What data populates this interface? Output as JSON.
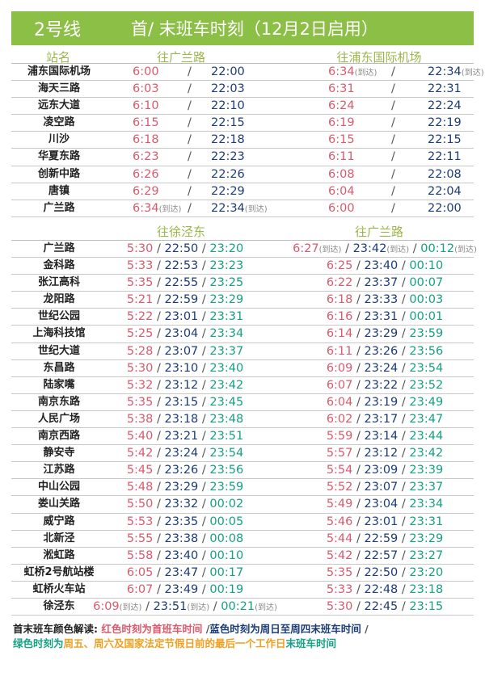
{
  "header": {
    "line": "2号线",
    "title": "首/ 末班车时刻（12月2日启用）"
  },
  "colors": {
    "header_bg": "#8cbf45",
    "first": "#d95a6e",
    "last_weekday": "#1c3c78",
    "last_weekend": "#16a085",
    "highlight": "#f0a020"
  },
  "upper": {
    "col_station": "站名",
    "col_left": "往广兰路",
    "col_right": "往浦东国际机场",
    "rows": [
      {
        "station": "浦东国际机场",
        "l": [
          [
            "6:00",
            ""
          ],
          [
            "22:00",
            ""
          ]
        ],
        "r": [
          [
            "6:34",
            "(到达)"
          ],
          [
            "22:34",
            "(到达)"
          ]
        ]
      },
      {
        "station": "海天三路",
        "l": [
          [
            "6:03",
            ""
          ],
          [
            "22:03",
            ""
          ]
        ],
        "r": [
          [
            "6:31",
            ""
          ],
          [
            "22:31",
            ""
          ]
        ]
      },
      {
        "station": "远东大道",
        "l": [
          [
            "6:10",
            ""
          ],
          [
            "22:10",
            ""
          ]
        ],
        "r": [
          [
            "6:24",
            ""
          ],
          [
            "22:24",
            ""
          ]
        ]
      },
      {
        "station": "凌空路",
        "l": [
          [
            "6:15",
            ""
          ],
          [
            "22:15",
            ""
          ]
        ],
        "r": [
          [
            "6:19",
            ""
          ],
          [
            "22:19",
            ""
          ]
        ]
      },
      {
        "station": "川沙",
        "l": [
          [
            "6:18",
            ""
          ],
          [
            "22:18",
            ""
          ]
        ],
        "r": [
          [
            "6:15",
            ""
          ],
          [
            "22:15",
            ""
          ]
        ]
      },
      {
        "station": "华夏东路",
        "l": [
          [
            "6:23",
            ""
          ],
          [
            "22:23",
            ""
          ]
        ],
        "r": [
          [
            "6:11",
            ""
          ],
          [
            "22:11",
            ""
          ]
        ]
      },
      {
        "station": "创新中路",
        "l": [
          [
            "6:26",
            ""
          ],
          [
            "22:26",
            ""
          ]
        ],
        "r": [
          [
            "6:08",
            ""
          ],
          [
            "22:08",
            ""
          ]
        ]
      },
      {
        "station": "唐镇",
        "l": [
          [
            "6:29",
            ""
          ],
          [
            "22:29",
            ""
          ]
        ],
        "r": [
          [
            "6:04",
            ""
          ],
          [
            "22:04",
            ""
          ]
        ]
      },
      {
        "station": "广兰路",
        "l": [
          [
            "6:34",
            "(到达)"
          ],
          [
            "22:34",
            "(到达)"
          ]
        ],
        "r": [
          [
            "6:00",
            ""
          ],
          [
            "22:00",
            ""
          ]
        ]
      }
    ]
  },
  "lower": {
    "col_left": "往徐泾东",
    "col_right": "往广兰路",
    "rows": [
      {
        "station": "广兰路",
        "l": [
          [
            "5:30",
            ""
          ],
          [
            "22:50",
            ""
          ],
          [
            "23:20",
            ""
          ]
        ],
        "r": [
          [
            "6:27",
            "(到达)"
          ],
          [
            "23:42",
            "(到达)"
          ],
          [
            "00:12",
            "(到达)"
          ]
        ]
      },
      {
        "station": "金科路",
        "l": [
          [
            "5:33",
            ""
          ],
          [
            "22:53",
            ""
          ],
          [
            "23:23",
            ""
          ]
        ],
        "r": [
          [
            "6:25",
            ""
          ],
          [
            "23:40",
            ""
          ],
          [
            "00:10",
            ""
          ]
        ]
      },
      {
        "station": "张江高科",
        "l": [
          [
            "5:35",
            ""
          ],
          [
            "22:55",
            ""
          ],
          [
            "23:25",
            ""
          ]
        ],
        "r": [
          [
            "6:22",
            ""
          ],
          [
            "23:37",
            ""
          ],
          [
            "00:07",
            ""
          ]
        ]
      },
      {
        "station": "龙阳路",
        "l": [
          [
            "5:21",
            ""
          ],
          [
            "22:59",
            ""
          ],
          [
            "23:29",
            ""
          ]
        ],
        "r": [
          [
            "6:18",
            ""
          ],
          [
            "23:33",
            ""
          ],
          [
            "00:03",
            ""
          ]
        ]
      },
      {
        "station": "世纪公园",
        "l": [
          [
            "5:22",
            ""
          ],
          [
            "23:01",
            ""
          ],
          [
            "23:31",
            ""
          ]
        ],
        "r": [
          [
            "6:16",
            ""
          ],
          [
            "23:31",
            ""
          ],
          [
            "00:01",
            ""
          ]
        ]
      },
      {
        "station": "上海科技馆",
        "l": [
          [
            "5:25",
            ""
          ],
          [
            "23:04",
            ""
          ],
          [
            "23:34",
            ""
          ]
        ],
        "r": [
          [
            "6:14",
            ""
          ],
          [
            "23:29",
            ""
          ],
          [
            "23:59",
            ""
          ]
        ]
      },
      {
        "station": "世纪大道",
        "l": [
          [
            "5:28",
            ""
          ],
          [
            "23:07",
            ""
          ],
          [
            "23:37",
            ""
          ]
        ],
        "r": [
          [
            "6:11",
            ""
          ],
          [
            "23:26",
            ""
          ],
          [
            "23:56",
            ""
          ]
        ]
      },
      {
        "station": "东昌路",
        "l": [
          [
            "5:30",
            ""
          ],
          [
            "23:10",
            ""
          ],
          [
            "23:40",
            ""
          ]
        ],
        "r": [
          [
            "6:09",
            ""
          ],
          [
            "23:24",
            ""
          ],
          [
            "23:54",
            ""
          ]
        ]
      },
      {
        "station": "陆家嘴",
        "l": [
          [
            "5:32",
            ""
          ],
          [
            "23:12",
            ""
          ],
          [
            "23:42",
            ""
          ]
        ],
        "r": [
          [
            "6:07",
            ""
          ],
          [
            "23:22",
            ""
          ],
          [
            "23:52",
            ""
          ]
        ]
      },
      {
        "station": "南京东路",
        "l": [
          [
            "5:35",
            ""
          ],
          [
            "23:15",
            ""
          ],
          [
            "23:45",
            ""
          ]
        ],
        "r": [
          [
            "6:04",
            ""
          ],
          [
            "23:19",
            ""
          ],
          [
            "23:49",
            ""
          ]
        ]
      },
      {
        "station": "人民广场",
        "l": [
          [
            "5:38",
            ""
          ],
          [
            "23:18",
            ""
          ],
          [
            "23:48",
            ""
          ]
        ],
        "r": [
          [
            "6:02",
            ""
          ],
          [
            "23:17",
            ""
          ],
          [
            "23:47",
            ""
          ]
        ]
      },
      {
        "station": "南京西路",
        "l": [
          [
            "5:40",
            ""
          ],
          [
            "23:21",
            ""
          ],
          [
            "23:51",
            ""
          ]
        ],
        "r": [
          [
            "5:59",
            ""
          ],
          [
            "23:14",
            ""
          ],
          [
            "23:44",
            ""
          ]
        ]
      },
      {
        "station": "静安寺",
        "l": [
          [
            "5:42",
            ""
          ],
          [
            "23:24",
            ""
          ],
          [
            "23:54",
            ""
          ]
        ],
        "r": [
          [
            "5:57",
            ""
          ],
          [
            "23:12",
            ""
          ],
          [
            "23:42",
            ""
          ]
        ]
      },
      {
        "station": "江苏路",
        "l": [
          [
            "5:45",
            ""
          ],
          [
            "23:26",
            ""
          ],
          [
            "23:56",
            ""
          ]
        ],
        "r": [
          [
            "5:54",
            ""
          ],
          [
            "23:09",
            ""
          ],
          [
            "23:39",
            ""
          ]
        ]
      },
      {
        "station": "中山公园",
        "l": [
          [
            "5:48",
            ""
          ],
          [
            "23:29",
            ""
          ],
          [
            "23:59",
            ""
          ]
        ],
        "r": [
          [
            "5:52",
            ""
          ],
          [
            "23:07",
            ""
          ],
          [
            "23:37",
            ""
          ]
        ]
      },
      {
        "station": "娄山关路",
        "l": [
          [
            "5:50",
            ""
          ],
          [
            "23:32",
            ""
          ],
          [
            "00:02",
            ""
          ]
        ],
        "r": [
          [
            "5:49",
            ""
          ],
          [
            "23:04",
            ""
          ],
          [
            "23:34",
            ""
          ]
        ]
      },
      {
        "station": "威宁路",
        "l": [
          [
            "5:53",
            ""
          ],
          [
            "23:35",
            ""
          ],
          [
            "00:05",
            ""
          ]
        ],
        "r": [
          [
            "5:46",
            ""
          ],
          [
            "23:01",
            ""
          ],
          [
            "23:31",
            ""
          ]
        ]
      },
      {
        "station": "北新泾",
        "l": [
          [
            "5:55",
            ""
          ],
          [
            "23:38",
            ""
          ],
          [
            "00:08",
            ""
          ]
        ],
        "r": [
          [
            "5:44",
            ""
          ],
          [
            "22:59",
            ""
          ],
          [
            "23:29",
            ""
          ]
        ]
      },
      {
        "station": "淞虹路",
        "l": [
          [
            "5:58",
            ""
          ],
          [
            "23:40",
            ""
          ],
          [
            "00:10",
            ""
          ]
        ],
        "r": [
          [
            "5:42",
            ""
          ],
          [
            "22:57",
            ""
          ],
          [
            "23:27",
            ""
          ]
        ]
      },
      {
        "station": "虹桥2号航站楼",
        "l": [
          [
            "6:05",
            ""
          ],
          [
            "23:47",
            ""
          ],
          [
            "00:17",
            ""
          ]
        ],
        "r": [
          [
            "5:35",
            ""
          ],
          [
            "22:50",
            ""
          ],
          [
            "23:20",
            ""
          ]
        ]
      },
      {
        "station": "虹桥火车站",
        "l": [
          [
            "6:07",
            ""
          ],
          [
            "23:49",
            ""
          ],
          [
            "00:19",
            ""
          ]
        ],
        "r": [
          [
            "5:33",
            ""
          ],
          [
            "22:48",
            ""
          ],
          [
            "23:18",
            ""
          ]
        ]
      },
      {
        "station": "徐泾东",
        "l": [
          [
            "6:09",
            "(到达)"
          ],
          [
            "23:51",
            "(到达)"
          ],
          [
            "00:21",
            "(到达)"
          ]
        ],
        "r": [
          [
            "5:30",
            ""
          ],
          [
            "22:45",
            ""
          ],
          [
            "23:15",
            ""
          ]
        ]
      }
    ]
  },
  "legend": {
    "label": "首末班车颜色解读: ",
    "red": "红色时刻为首班车时间",
    "sep": " /",
    "blue": "蓝色时刻为周日至周四末班车时间",
    "green_a": "绿色时刻为",
    "orange": "周五、周六及国家法定节假日前的最后一个工作日",
    "green_b": "末班车时间"
  }
}
